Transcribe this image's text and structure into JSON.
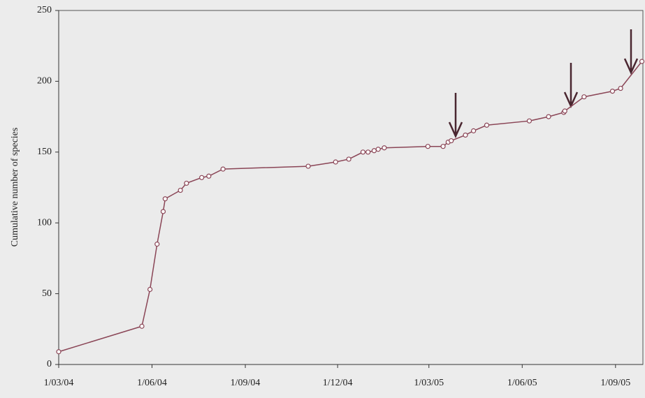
{
  "chart_data": {
    "type": "line",
    "y_label": "Cumulative number of species",
    "x": [
      "2004-03-01",
      "2004-05-22",
      "2004-05-30",
      "2004-06-06",
      "2004-06-12",
      "2004-06-14",
      "2004-06-29",
      "2004-07-05",
      "2004-07-20",
      "2004-07-27",
      "2004-08-10",
      "2004-11-02",
      "2004-11-29",
      "2004-12-12",
      "2004-12-26",
      "2004-12-31",
      "2005-01-06",
      "2005-01-10",
      "2005-01-16",
      "2005-02-28",
      "2005-03-15",
      "2005-03-20",
      "2005-03-23",
      "2005-04-06",
      "2005-04-14",
      "2005-04-27",
      "2005-06-08",
      "2005-06-27",
      "2005-07-12",
      "2005-07-13",
      "2005-08-01",
      "2005-08-29",
      "2005-09-06",
      "2005-09-27"
    ],
    "series": [
      {
        "color": "#8a4556",
        "values": [
          9,
          27,
          53,
          85,
          108,
          117,
          123,
          128,
          132,
          133,
          138,
          140,
          143,
          145,
          150,
          150,
          151,
          152,
          153,
          154,
          154,
          157,
          158,
          162,
          165,
          169,
          172,
          175,
          178,
          179,
          189,
          193,
          195,
          214
        ]
      }
    ],
    "xlim": [
      "2004-03-01",
      "2005-09-28"
    ],
    "xticks": [
      {
        "value": "2004-03-01",
        "label": "1/03/04"
      },
      {
        "value": "2004-06-01",
        "label": "1/06/04"
      },
      {
        "value": "2004-09-01",
        "label": "1/09/04"
      },
      {
        "value": "2004-12-01",
        "label": "1/12/04"
      },
      {
        "value": "2005-03-01",
        "label": "1/03/05"
      },
      {
        "value": "2005-06-01",
        "label": "1/06/05"
      },
      {
        "value": "2005-09-01",
        "label": "1/09/05"
      }
    ],
    "ylim": [
      0,
      250
    ],
    "yticks": [
      0,
      50,
      100,
      150,
      200,
      250
    ]
  }
}
